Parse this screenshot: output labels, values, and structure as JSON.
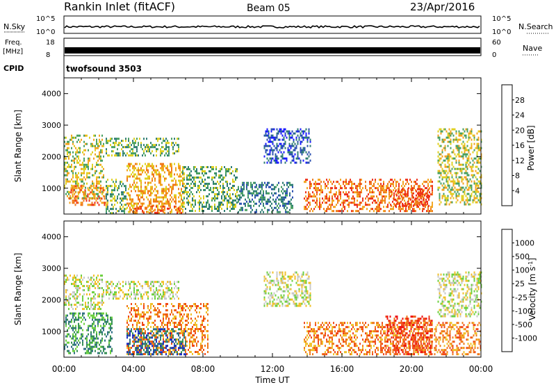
{
  "header": {
    "station": "Rankin Inlet (fitACF)",
    "beam": "Beam 05",
    "date": "23/Apr/2016"
  },
  "status_panels": {
    "nsky_label": "N.Sky",
    "nsky_ticks": [
      "10^5",
      "10^0"
    ],
    "nsearch_label": "N.Search",
    "nsearch_ticks": [
      "10^5",
      "10^0"
    ],
    "freq_label_line1": "Freq.",
    "freq_label_line2": "[MHz]",
    "freq_ticks": [
      "18",
      "8"
    ],
    "nave_label": "Nave",
    "nave_ticks": [
      "60",
      "0"
    ],
    "cpid_label": "CPID",
    "cpid_value": "twofsound 3503"
  },
  "chart_data": [
    {
      "type": "heatmap",
      "name": "power",
      "xlabel": "",
      "ylabel": "Slant Range [km]",
      "yticks": [
        1000,
        2000,
        3000,
        4000
      ],
      "ylim": [
        180,
        4500
      ],
      "xlim_hours": [
        0,
        24
      ],
      "colorbar": {
        "label": "Power [dB]",
        "ticks": [
          "4",
          "8",
          "12",
          "16",
          "20",
          "24",
          "28"
        ],
        "colors": [
          "#1a1aff",
          "#2a4fb0",
          "#2f7d74",
          "#48a060",
          "#e0d020",
          "#f3a41e",
          "#f07818",
          "#ee3018"
        ]
      },
      "regions": [
        {
          "t0": 0.0,
          "t1": 2.3,
          "r0": 700,
          "r1": 2700,
          "level": 4
        },
        {
          "t0": 0.3,
          "t1": 2.5,
          "r0": 450,
          "r1": 1100,
          "level": 6
        },
        {
          "t0": 2.4,
          "t1": 3.6,
          "r0": 200,
          "r1": 1300,
          "level": 3
        },
        {
          "t0": 2.4,
          "t1": 6.6,
          "r0": 2050,
          "r1": 2600,
          "level": 3
        },
        {
          "t0": 3.6,
          "t1": 6.9,
          "r0": 250,
          "r1": 1800,
          "level": 5
        },
        {
          "t0": 4.0,
          "t1": 6.8,
          "r0": 230,
          "r1": 450,
          "level": 6
        },
        {
          "t0": 6.8,
          "t1": 10.0,
          "r0": 250,
          "r1": 1700,
          "level": 3
        },
        {
          "t0": 10.0,
          "t1": 13.2,
          "r0": 220,
          "r1": 1200,
          "level": 2
        },
        {
          "t0": 11.5,
          "t1": 14.2,
          "r0": 1800,
          "r1": 2900,
          "level": 1
        },
        {
          "t0": 13.8,
          "t1": 21.2,
          "r0": 250,
          "r1": 1300,
          "level": 6
        },
        {
          "t0": 18.8,
          "t1": 21.0,
          "r0": 450,
          "r1": 1000,
          "level": 7
        },
        {
          "t0": 21.5,
          "t1": 24.0,
          "r0": 500,
          "r1": 2900,
          "level": 4
        }
      ]
    },
    {
      "type": "heatmap",
      "name": "velocity",
      "xlabel": "Time UT",
      "ylabel": "Slant Range [km]",
      "xticks": [
        "00:00",
        "04:00",
        "08:00",
        "12:00",
        "16:00",
        "20:00",
        "00:00"
      ],
      "yticks": [
        1000,
        2000,
        3000,
        4000
      ],
      "ylim": [
        180,
        4500
      ],
      "xlim_hours": [
        0,
        24
      ],
      "colorbar": {
        "label": "Velocity [m s",
        "label_sup": "-1",
        "label_end": "]",
        "ticks": [
          "1000",
          "500",
          "100",
          "25",
          "-25",
          "-100",
          "-500",
          "-1000"
        ],
        "colors": [
          "#1a2fc0",
          "#2f6e85",
          "#358f54",
          "#6cd040",
          "#c8c8c8",
          "#f0c028",
          "#f07818",
          "#f04818",
          "#ee1010"
        ]
      },
      "regions": [
        {
          "t0": 0.0,
          "t1": 2.3,
          "r0": 1700,
          "r1": 2800,
          "level": 4
        },
        {
          "t0": 0.0,
          "t1": 2.8,
          "r0": 300,
          "r1": 1600,
          "level": 2
        },
        {
          "t0": 2.4,
          "t1": 6.6,
          "r0": 2050,
          "r1": 2600,
          "level": 4
        },
        {
          "t0": 3.6,
          "t1": 8.3,
          "r0": 300,
          "r1": 1900,
          "level": 6
        },
        {
          "t0": 3.6,
          "t1": 7.0,
          "r0": 250,
          "r1": 1100,
          "level": 1
        },
        {
          "t0": 11.5,
          "t1": 14.2,
          "r0": 1800,
          "r1": 2900,
          "level": 4
        },
        {
          "t0": 13.8,
          "t1": 21.2,
          "r0": 250,
          "r1": 1300,
          "level": 6
        },
        {
          "t0": 18.5,
          "t1": 21.2,
          "r0": 250,
          "r1": 1500,
          "level": 7
        },
        {
          "t0": 21.5,
          "t1": 24.0,
          "r0": 1500,
          "r1": 2900,
          "level": 4
        },
        {
          "t0": 21.3,
          "t1": 24.0,
          "r0": 300,
          "r1": 1300,
          "level": 6
        }
      ]
    }
  ]
}
